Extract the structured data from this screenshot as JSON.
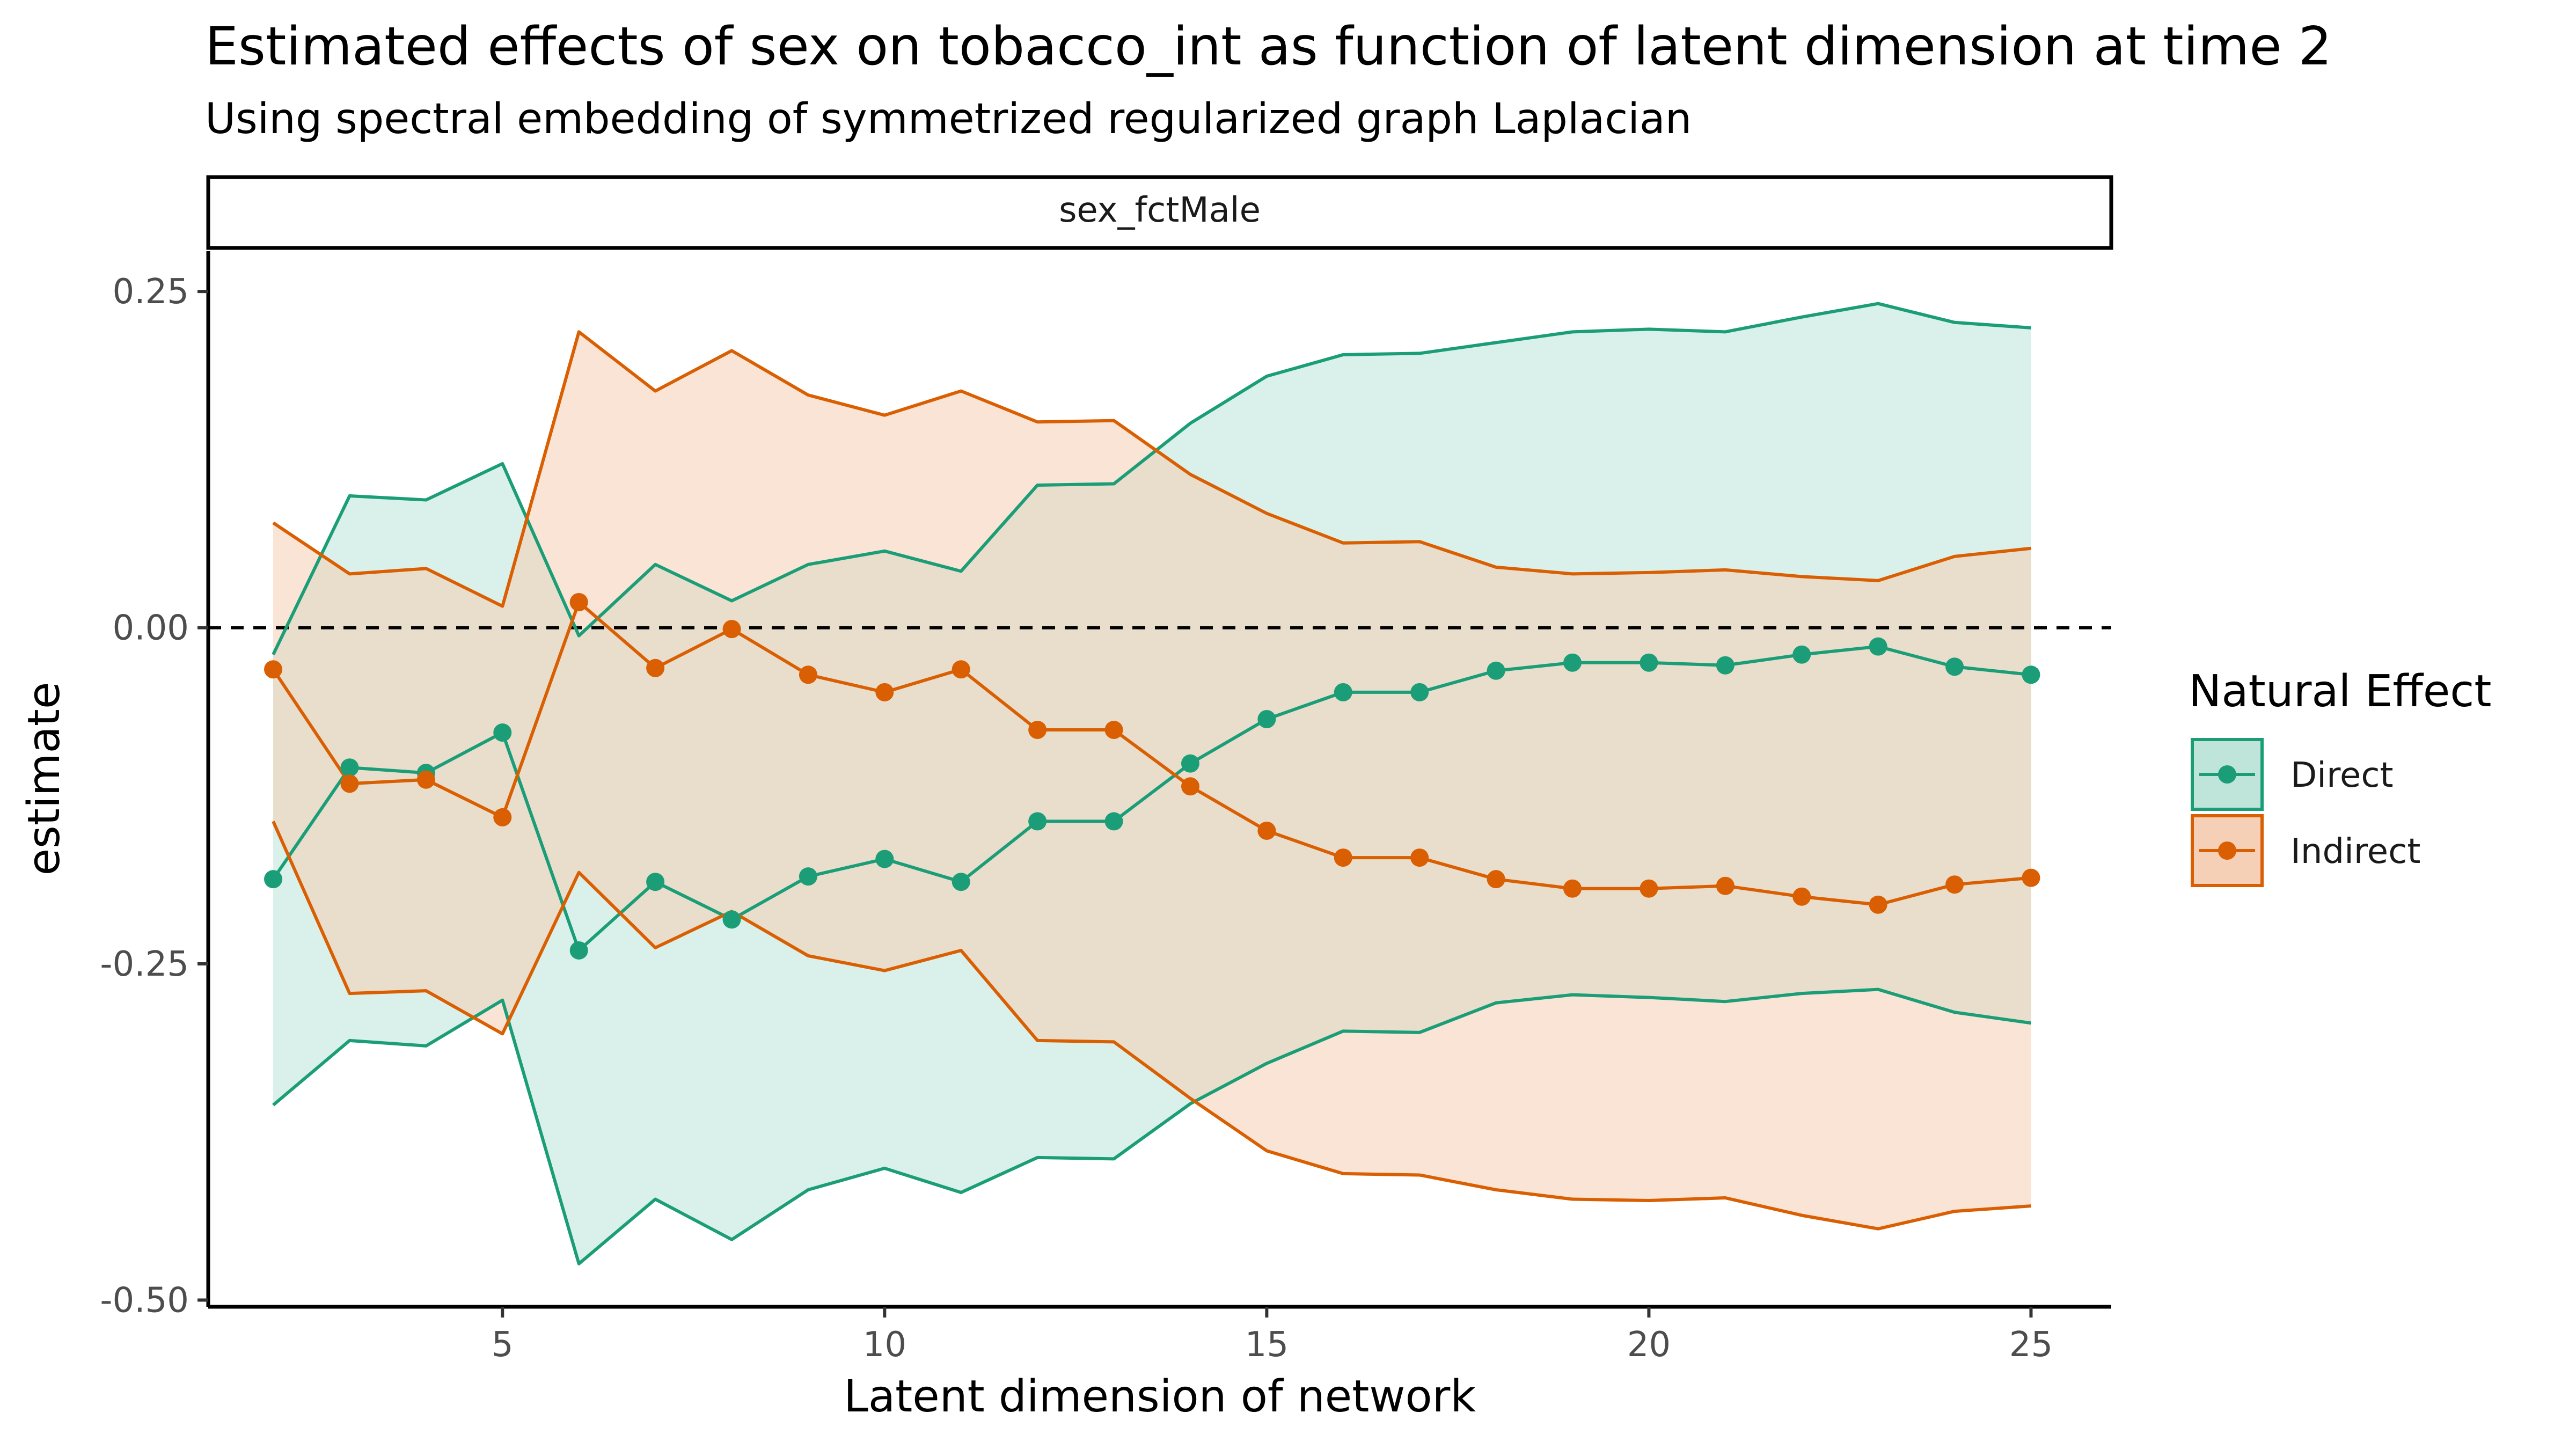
{
  "chart_data": {
    "type": "line",
    "title": "Estimated effects of sex on tobacco_int as function of latent dimension at time 2",
    "subtitle": "Using spectral embedding of symmetrized regularized graph Laplacian",
    "facet_label": "sex_fctMale",
    "xlabel": "Latent dimension of network",
    "ylabel": "estimate",
    "xlim": [
      1.15,
      26.05
    ],
    "ylim": [
      -0.505,
      0.28
    ],
    "x_ticks": [
      5,
      10,
      15,
      20,
      25
    ],
    "x_tick_labels": [
      "5",
      "10",
      "15",
      "20",
      "25"
    ],
    "y_ticks": [
      0.25,
      0.0,
      -0.25,
      -0.5
    ],
    "y_tick_labels": [
      "0.25",
      "0.00",
      "-0.25",
      "-0.50"
    ],
    "reference_line": 0,
    "grid": false,
    "legend": {
      "title": "Natural Effect",
      "position": "right"
    },
    "x": [
      2,
      3,
      4,
      5,
      6,
      7,
      8,
      9,
      10,
      11,
      12,
      13,
      14,
      15,
      16,
      17,
      18,
      19,
      20,
      21,
      22,
      23,
      24,
      25
    ],
    "series": [
      {
        "name": "Direct",
        "line_color": "#1b9e77",
        "fill_color": "#bce3d8",
        "estimate": [
          -0.187,
          -0.104,
          -0.108,
          -0.078,
          -0.24,
          -0.189,
          -0.217,
          -0.185,
          -0.172,
          -0.189,
          -0.144,
          -0.144,
          -0.101,
          -0.068,
          -0.048,
          -0.048,
          -0.032,
          -0.026,
          -0.026,
          -0.028,
          -0.02,
          -0.014,
          -0.029,
          -0.035
        ],
        "upper": [
          -0.02,
          0.098,
          0.095,
          0.122,
          -0.006,
          0.047,
          0.02,
          0.047,
          0.057,
          0.042,
          0.106,
          0.107,
          0.152,
          0.187,
          0.203,
          0.204,
          0.212,
          0.22,
          0.222,
          0.22,
          0.231,
          0.241,
          0.227,
          0.223
        ],
        "lower": [
          -0.355,
          -0.307,
          -0.311,
          -0.277,
          -0.473,
          -0.425,
          -0.455,
          -0.418,
          -0.402,
          -0.42,
          -0.394,
          -0.395,
          -0.354,
          -0.324,
          -0.3,
          -0.301,
          -0.279,
          -0.273,
          -0.275,
          -0.278,
          -0.272,
          -0.269,
          -0.286,
          -0.294
        ]
      },
      {
        "name": "Indirect",
        "line_color": "#d95f02",
        "fill_color": "#f5cdb2",
        "estimate": [
          -0.031,
          -0.116,
          -0.113,
          -0.141,
          0.019,
          -0.03,
          -0.001,
          -0.035,
          -0.048,
          -0.031,
          -0.076,
          -0.076,
          -0.118,
          -0.151,
          -0.171,
          -0.171,
          -0.187,
          -0.194,
          -0.194,
          -0.192,
          -0.2,
          -0.206,
          -0.191,
          -0.186
        ],
        "upper": [
          0.078,
          0.04,
          0.044,
          0.016,
          0.22,
          0.176,
          0.206,
          0.173,
          0.158,
          0.176,
          0.153,
          0.154,
          0.114,
          0.085,
          0.063,
          0.064,
          0.045,
          0.04,
          0.041,
          0.043,
          0.038,
          0.035,
          0.053,
          0.059
        ],
        "lower": [
          -0.144,
          -0.272,
          -0.27,
          -0.302,
          -0.182,
          -0.238,
          -0.211,
          -0.244,
          -0.255,
          -0.24,
          -0.307,
          -0.308,
          -0.35,
          -0.389,
          -0.406,
          -0.407,
          -0.418,
          -0.425,
          -0.426,
          -0.424,
          -0.437,
          -0.447,
          -0.434,
          -0.43
        ]
      }
    ]
  },
  "colors": {
    "text": "#1a1a1a",
    "tick_text": "#4d4d4d",
    "axis": "#000000"
  }
}
